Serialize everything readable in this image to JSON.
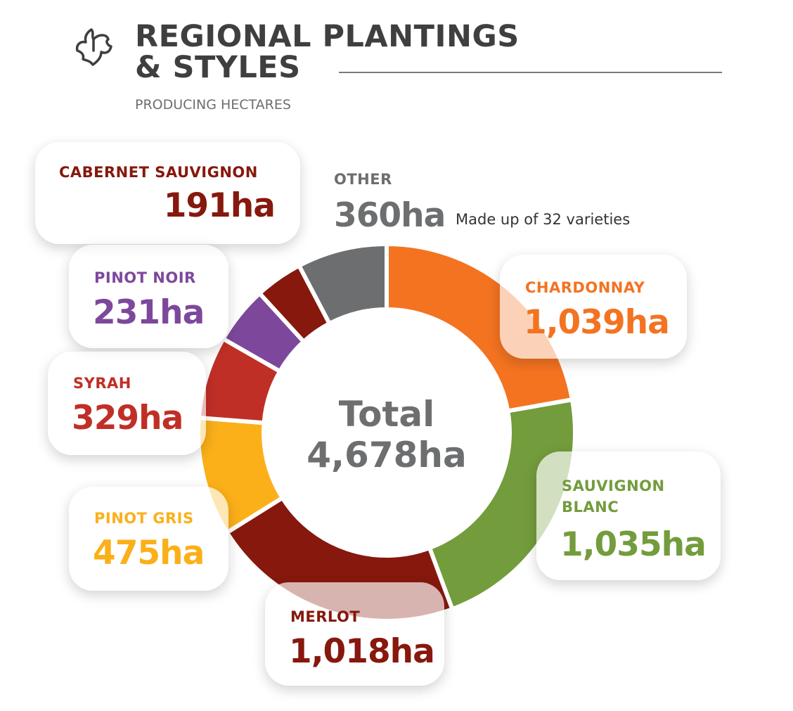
{
  "header": {
    "title_line1": "REGIONAL PLANTINGS",
    "title_line2": "& STYLES",
    "subtitle": "PRODUCING HECTARES",
    "logo_icon": "vine-leaf-icon"
  },
  "center": {
    "label": "Total",
    "value": "4,678ha"
  },
  "other_note": "Made up of 32 varieties",
  "chart_data": {
    "type": "donut",
    "title": "REGIONAL PLANTINGS & STYLES",
    "subtitle": "PRODUCING HECTARES",
    "unit": "ha",
    "total": 4678,
    "slices": [
      {
        "name": "CHARDONNAY",
        "value": 1039,
        "display": "1,039ha",
        "color": "#f37321"
      },
      {
        "name": "SAUVIGNON BLANC",
        "value": 1035,
        "display": "1,035ha",
        "color": "#739c3c"
      },
      {
        "name": "MERLOT",
        "value": 1018,
        "display": "1,018ha",
        "color": "#86180d"
      },
      {
        "name": "PINOT GRIS",
        "value": 475,
        "display": "475ha",
        "color": "#fbb01a"
      },
      {
        "name": "SYRAH",
        "value": 329,
        "display": "329ha",
        "color": "#c02f26"
      },
      {
        "name": "PINOT NOIR",
        "value": 231,
        "display": "231ha",
        "color": "#7d489c"
      },
      {
        "name": "CABERNET SAUVIGNON",
        "value": 191,
        "display": "191ha",
        "color": "#86180d"
      },
      {
        "name": "OTHER",
        "value": 360,
        "display": "360ha",
        "color": "#6d6e70"
      }
    ]
  }
}
